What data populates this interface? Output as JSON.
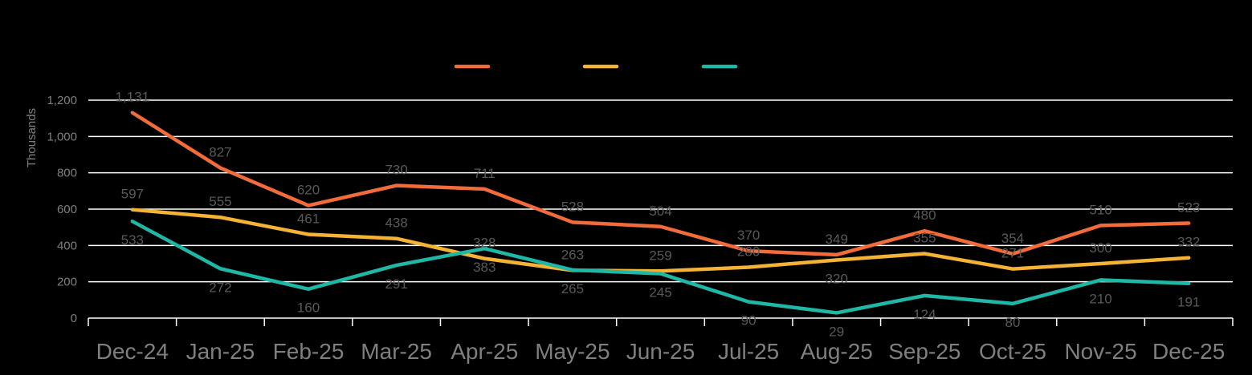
{
  "chart_data": {
    "type": "line",
    "ylabel": "Thousands",
    "ylim": [
      0,
      1200
    ],
    "yticks": [
      0,
      200,
      400,
      600,
      800,
      1000,
      1200
    ],
    "ytick_labels": [
      "0",
      "200",
      "400",
      "600",
      "800",
      "1,000",
      "1,200"
    ],
    "categories": [
      "Dec-24",
      "Jan-25",
      "Feb-25",
      "Mar-25",
      "Apr-25",
      "May-25",
      "Jun-25",
      "Jul-25",
      "Aug-25",
      "Sep-25",
      "Oct-25",
      "Nov-25",
      "Dec-25"
    ],
    "grid": true,
    "legend": "top-center",
    "series": [
      {
        "color": "#f26b3a",
        "values": [
          1131,
          827,
          620,
          730,
          711,
          528,
          504,
          370,
          349,
          480,
          354,
          510,
          523
        ],
        "labels": [
          "1,131",
          "827",
          "620",
          "730",
          "711",
          "528",
          "504",
          "370",
          "349",
          "480",
          "354",
          "510",
          "523"
        ],
        "label_pos": [
          "above",
          "above",
          "above",
          "above",
          "above",
          "above",
          "above",
          "above",
          "above",
          "above",
          "above",
          "above",
          "above"
        ]
      },
      {
        "color": "#f5b335",
        "values": [
          597,
          555,
          461,
          438,
          328,
          263,
          259,
          280,
          320,
          355,
          271,
          300,
          332
        ],
        "labels": [
          "597",
          "555",
          "461",
          "438",
          "328",
          "263",
          "259",
          "280",
          "320",
          "355",
          "271",
          "300",
          "332"
        ],
        "label_pos": [
          "above",
          "above",
          "above",
          "above",
          "above",
          "above",
          "above",
          "above",
          "below",
          "above",
          "above",
          "above",
          "above"
        ]
      },
      {
        "color": "#1fb8a6",
        "values": [
          533,
          272,
          160,
          291,
          383,
          265,
          245,
          90,
          29,
          124,
          80,
          210,
          191
        ],
        "labels": [
          "533",
          "272",
          "160",
          "291",
          "383",
          "265",
          "245",
          "90",
          "29",
          "124",
          "80",
          "210",
          "191"
        ],
        "label_pos": [
          "below",
          "below",
          "below",
          "below",
          "below",
          "below",
          "below",
          "below",
          "below",
          "below",
          "below",
          "below",
          "below"
        ]
      }
    ]
  }
}
